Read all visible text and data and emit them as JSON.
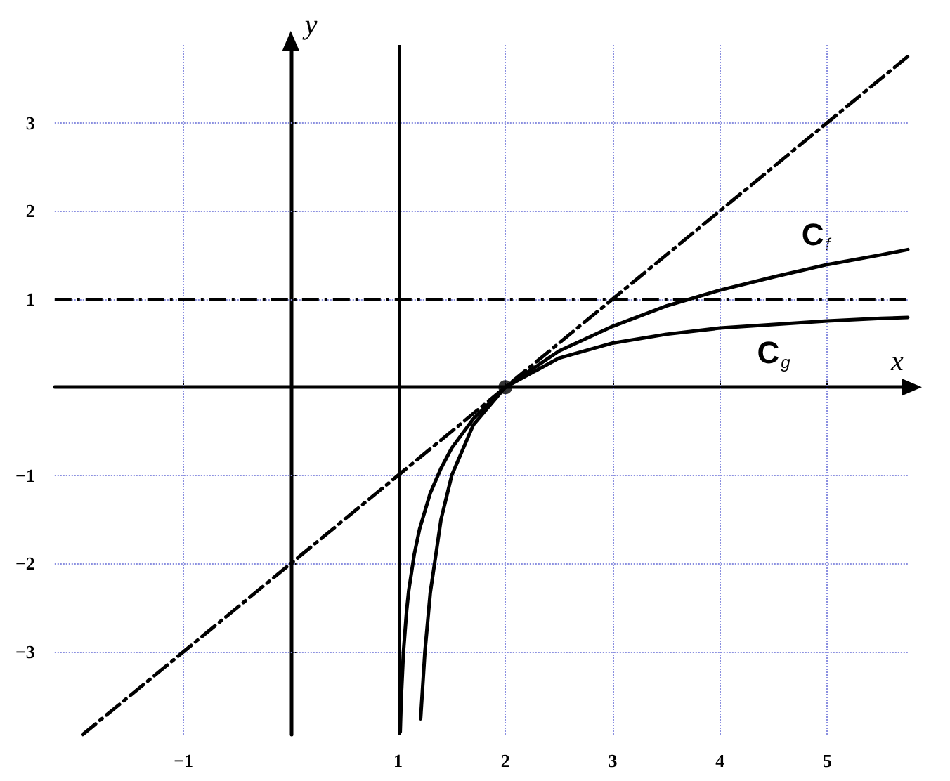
{
  "chart_data": {
    "type": "line",
    "xlabel": "x",
    "ylabel": "y",
    "xlim": [
      -2.2,
      5.75
    ],
    "ylim": [
      -3.94,
      3.88
    ],
    "xticks": [
      -1,
      1,
      2,
      3,
      4,
      5
    ],
    "yticks": [
      -3,
      -2,
      -1,
      1,
      2,
      3
    ],
    "grid": true,
    "legend": false,
    "marker": "none",
    "series": [
      {
        "name": "C$_{f}$",
        "color": "#000000",
        "line_style": "solid",
        "x": [
          1.02,
          1.03,
          1.05,
          1.08,
          1.1,
          1.15,
          1.2,
          1.3,
          1.4,
          1.5,
          1.7,
          2,
          2.5,
          3,
          3.5,
          4,
          4.5,
          5,
          5.5,
          5.75
        ],
        "values": [
          -3.91,
          -3.51,
          -3.0,
          -2.53,
          -2.3,
          -1.9,
          -1.61,
          -1.2,
          -0.92,
          -0.69,
          -0.36,
          0,
          0.41,
          0.69,
          0.92,
          1.1,
          1.25,
          1.39,
          1.5,
          1.56
        ]
      },
      {
        "name": "C$_{g}$",
        "color": "#000000",
        "line_style": "solid",
        "x": [
          1.21,
          1.25,
          1.3,
          1.4,
          1.5,
          1.7,
          2,
          2.5,
          3,
          3.5,
          4,
          4.5,
          5,
          5.5,
          5.75
        ],
        "values": [
          -3.76,
          -3.0,
          -2.33,
          -1.5,
          -1.0,
          -0.43,
          0,
          0.33,
          0.5,
          0.6,
          0.67,
          0.71,
          0.75,
          0.78,
          0.79
        ]
      },
      {
        "color": "#000000",
        "line_style": "dashed",
        "x": [
          -1.94,
          5.75
        ],
        "values": [
          -3.94,
          3.75
        ]
      },
      {
        "type": "scatter",
        "marker": "circle",
        "color": "#000000",
        "x": [
          2
        ],
        "values": [
          0
        ]
      }
    ],
    "ref_lines": [
      {
        "axis": "x",
        "value": 1,
        "label": null,
        "color": "#000000",
        "line_style": "solid"
      },
      {
        "axis": "y",
        "value": 1,
        "label": null,
        "color": "#000000",
        "line_style": "dashed"
      }
    ]
  }
}
